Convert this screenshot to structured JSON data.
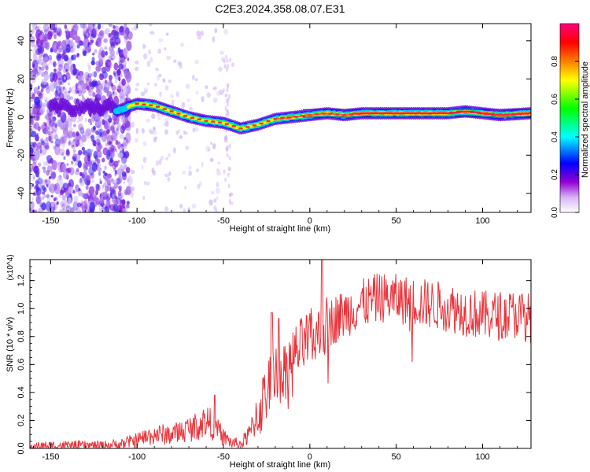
{
  "title": "C2E3.2024.358.08.07.E31",
  "chart_data": [
    {
      "type": "heatmap",
      "xlabel": "Height of straight line (km)",
      "ylabel": "Frequency (Hz)",
      "xlim": [
        -162,
        128
      ],
      "ylim": [
        -50,
        49
      ],
      "xticks": [
        -150,
        -100,
        -50,
        0,
        50,
        100
      ],
      "yticks": [
        -40,
        -20,
        0,
        20,
        40
      ],
      "colorbar": {
        "label": "Normalized spectral amplitude",
        "range": [
          0,
          1
        ],
        "ticks": [
          0.0,
          0.2,
          0.4,
          0.6,
          0.8
        ],
        "tick_labels": [
          "0.0",
          "0.2",
          "0.4",
          "0.6",
          "0.8"
        ],
        "colors": [
          "#ffffff",
          "#9400d3",
          "#0000ff",
          "#00ffff",
          "#00ff00",
          "#ffff00",
          "#ff7f00",
          "#ff0000",
          "#ff0080"
        ]
      },
      "ridge": {
        "x": [
          -112,
          -100,
          -90,
          -80,
          -70,
          -60,
          -50,
          -40,
          -30,
          -20,
          -10,
          0,
          10,
          20,
          30,
          40,
          50,
          60,
          70,
          80,
          90,
          100,
          110,
          128
        ],
        "frequency": [
          3,
          7,
          6,
          3,
          0,
          -2,
          -3,
          -6,
          -4,
          -1,
          0,
          1,
          2,
          1,
          2,
          2,
          2,
          2,
          2,
          2,
          3,
          2,
          1,
          2
        ]
      }
    },
    {
      "type": "line",
      "xlabel": "Height of straight line (km)",
      "ylabel": "SNR (10 * v/v)",
      "y_multiplier": "(x10^4)",
      "xlim": [
        -162,
        128
      ],
      "ylim": [
        0,
        1.35
      ],
      "xticks": [
        -150,
        -100,
        -50,
        0,
        50,
        100
      ],
      "yticks": [
        0.0,
        0.2,
        0.4,
        0.6,
        0.8,
        1.0,
        1.2
      ],
      "ytick_labels": [
        "0.0",
        "0.2",
        "0.4",
        "0.6",
        "0.8",
        "1.0",
        "1.2"
      ],
      "color": "#e8333a",
      "series": [
        {
          "x": [
            -162,
            -150,
            -140,
            -130,
            -120,
            -110,
            -100,
            -95,
            -90,
            -80,
            -75,
            -70,
            -65,
            -60,
            -55,
            -50,
            -45,
            -40,
            -35,
            -30,
            -25,
            -20,
            -15,
            -10,
            -5,
            0,
            5,
            10,
            15,
            20,
            25,
            30,
            40,
            50,
            60,
            70,
            80,
            90,
            100,
            110,
            120,
            128
          ],
          "y": [
            0.01,
            0.02,
            0.02,
            0.02,
            0.02,
            0.03,
            0.06,
            0.08,
            0.1,
            0.1,
            0.12,
            0.14,
            0.16,
            0.2,
            0.15,
            0.08,
            0.04,
            0.03,
            0.1,
            0.25,
            0.4,
            0.58,
            0.55,
            0.65,
            0.72,
            0.78,
            0.8,
            0.88,
            0.93,
            0.96,
            1.0,
            1.03,
            1.08,
            1.07,
            1.05,
            1.03,
            1.01,
            0.98,
            0.95,
            0.95,
            0.96,
            0.93
          ]
        }
      ],
      "spikes": [
        {
          "x": 7,
          "y": 1.35
        },
        {
          "x": -22,
          "y": 0.97
        },
        {
          "x": -18,
          "y": 0.93
        },
        {
          "x": -55,
          "y": 0.38
        }
      ]
    }
  ]
}
